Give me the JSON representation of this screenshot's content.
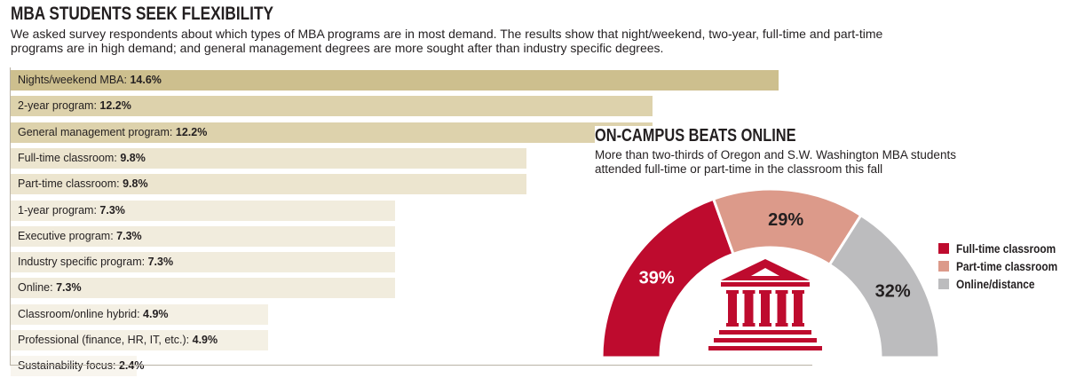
{
  "chart_data": [
    {
      "type": "bar",
      "orientation": "horizontal",
      "title": "MBA STUDENTS SEEK FLEXIBILITY",
      "subtitle": "We asked survey respondents about which types of MBA programs are in most demand. The results show that night/weekend, two-year, full-time and part-time programs are in high demand; and general management degrees are more sought after than industry specific degrees.",
      "categories": [
        "Nights/weekend MBA:",
        "2-year program:",
        "General management program:",
        "Full-time classroom:",
        "Part-time classroom:",
        "1-year program:",
        "Executive program:",
        "Industry specific program:",
        "Online:",
        "Classroom/online hybrid:",
        "Professional (finance, HR, IT, etc.):",
        "Sustainability focus:"
      ],
      "values": [
        14.6,
        12.2,
        12.2,
        9.8,
        9.8,
        7.3,
        7.3,
        7.3,
        7.3,
        4.9,
        4.9,
        2.4
      ],
      "value_labels": [
        "14.6%",
        "12.2%",
        "12.2%",
        "9.8%",
        "9.8%",
        "7.3%",
        "7.3%",
        "7.3%",
        "7.3%",
        "4.9%",
        "4.9%",
        "2.4%"
      ],
      "xlim": [
        0,
        15
      ],
      "colors": [
        "#cdbf8e",
        "#ddd2ac",
        "#ddd2ac",
        "#ece5cf",
        "#ece5cf",
        "#f1ecdd",
        "#f1ecdd",
        "#f1ecdd",
        "#f1ecdd",
        "#f4f0e4",
        "#f4f0e4",
        "#f8f5ee"
      ]
    },
    {
      "type": "pie",
      "style": "half-donut",
      "title": "ON-CAMPUS BEATS ONLINE",
      "subtitle": "More than two-thirds of Oregon and S.W. Washington MBA students attended full-time or part-time in the classroom this fall",
      "categories": [
        "Full-time classroom",
        "Part-time classroom",
        "Online/distance"
      ],
      "values": [
        39,
        29,
        32
      ],
      "value_labels": [
        "39%",
        "29%",
        "32%"
      ],
      "colors": [
        "#be0b2e",
        "#dc9a8a",
        "#bcbcbe"
      ],
      "icon": "building-columns-icon",
      "icon_color": "#be0b2e",
      "legend_position": "right"
    }
  ]
}
